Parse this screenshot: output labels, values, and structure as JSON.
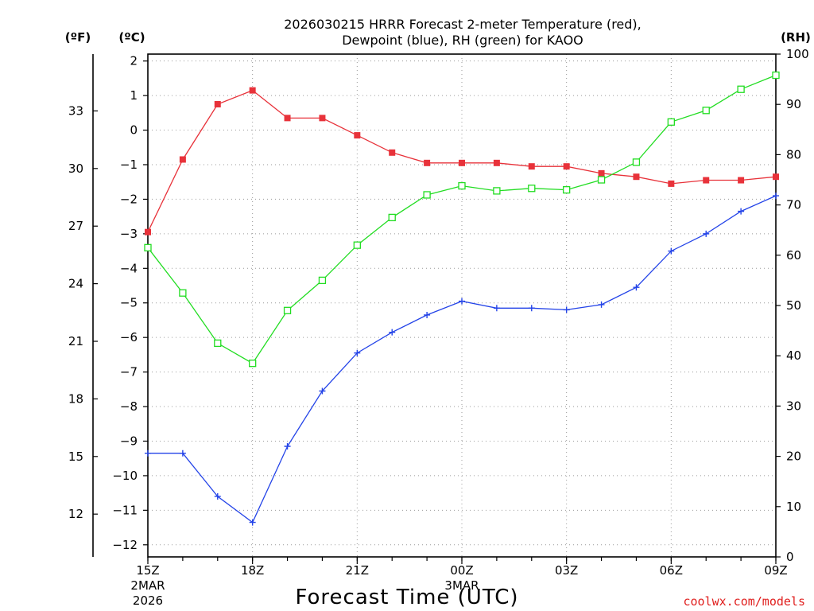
{
  "chart_data": {
    "type": "line",
    "title_line1": "2026030215 HRRR Forecast 2-meter Temperature (red),",
    "title_line2": "Dewpoint (blue), RH (green) for KAOO",
    "xlabel": "Forecast Time (UTC)",
    "credit": "coolwx.com/models",
    "units": {
      "fahrenheit": "(ºF)",
      "celsius": "(ºC)",
      "rh": "(RH)"
    },
    "x_ticks": [
      {
        "hour": 0,
        "label": "15Z",
        "sub1": "2MAR",
        "sub2": "2026"
      },
      {
        "hour": 3,
        "label": "18Z",
        "sub1": "",
        "sub2": ""
      },
      {
        "hour": 6,
        "label": "21Z",
        "sub1": "",
        "sub2": ""
      },
      {
        "hour": 9,
        "label": "00Z",
        "sub1": "3MAR",
        "sub2": ""
      },
      {
        "hour": 12,
        "label": "03Z",
        "sub1": "",
        "sub2": ""
      },
      {
        "hour": 15,
        "label": "06Z",
        "sub1": "",
        "sub2": ""
      },
      {
        "hour": 18,
        "label": "09Z",
        "sub1": "",
        "sub2": ""
      }
    ],
    "xlim": [
      0,
      18
    ],
    "celsius_ylim": [
      -12.35,
      2.2
    ],
    "celsius_ticks": [
      "2",
      "1",
      "0",
      "−1",
      "−2",
      "−3",
      "−4",
      "−5",
      "−6",
      "−7",
      "−8",
      "−9",
      "−10",
      "−11",
      "−12"
    ],
    "fahrenheit_ticks": [
      "33",
      "30",
      "27",
      "24",
      "21",
      "18",
      "15",
      "12"
    ],
    "rh_ylim": [
      0,
      100
    ],
    "rh_ticks": [
      "100",
      "90",
      "80",
      "70",
      "60",
      "50",
      "40",
      "30",
      "20",
      "10",
      "0"
    ],
    "series": [
      {
        "name": "Temperature",
        "color": "#e8323a",
        "axis": "celsius",
        "marker": "filled-square",
        "values": [
          -2.95,
          -0.85,
          0.75,
          1.15,
          0.35,
          0.35,
          -0.15,
          -0.65,
          -0.95,
          -0.95,
          -0.95,
          -1.05,
          -1.05,
          -1.25,
          -1.35,
          -1.55,
          -1.45,
          -1.45,
          -1.35
        ]
      },
      {
        "name": "Dewpoint",
        "color": "#2343e8",
        "axis": "celsius",
        "marker": "plus",
        "values": [
          -9.35,
          -9.35,
          -10.6,
          -11.35,
          -9.15,
          -7.55,
          -6.45,
          -5.85,
          -5.35,
          -4.95,
          -5.15,
          -5.15,
          -5.2,
          -5.05,
          -4.55,
          -3.5,
          -3.0,
          -2.35,
          -1.9
        ]
      },
      {
        "name": "RH",
        "color": "#22dd22",
        "axis": "rh",
        "marker": "open-square",
        "values": [
          61.5,
          52.5,
          42.5,
          38.5,
          49,
          55,
          62,
          67.5,
          72,
          73.8,
          72.8,
          73.3,
          73,
          75,
          78.5,
          86.5,
          88.8,
          93,
          95.8
        ]
      }
    ]
  }
}
